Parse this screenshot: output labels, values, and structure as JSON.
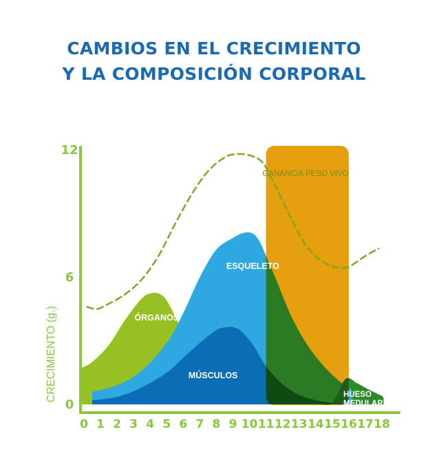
{
  "title_lines": [
    "CAMBIOS EN EL CRECIMIENTO",
    "Y LA COMPOSICIÓN CORPORAL"
  ],
  "colors": {
    "title": "#1a6ab3",
    "axis": "#8bc53f",
    "organos": "#97c023",
    "esqueleto": "#2fa7e0",
    "musculos": "#0b6db5",
    "hueso_medular": "#2f8a2a",
    "highlight_box": "#e6a00f",
    "ganancia_line": "#79a922"
  },
  "chart_data": {
    "type": "area",
    "ylabel": "CRECIMIENTO (g.)",
    "xlabel": "",
    "x_ticks": [
      "0",
      "1",
      "2",
      "3",
      "4",
      "5",
      "6",
      "7",
      "8",
      "9",
      "10",
      "11",
      "12",
      "13",
      "14",
      "15",
      "16",
      "17",
      "18"
    ],
    "y_ticks": [
      "0",
      "6",
      "12"
    ],
    "xlim": [
      0,
      18
    ],
    "ylim": [
      0,
      12
    ],
    "grid": false,
    "series": [
      {
        "name": "ÓRGANOS",
        "x": [
          -0.2,
          0.5,
          1.5,
          2.5,
          3.5,
          4.1,
          4.6,
          5.0,
          5.6,
          6.3,
          7.0,
          8.0,
          9.0,
          10.0,
          11.0,
          12.0,
          13.0
        ],
        "values": [
          1.7,
          2.0,
          2.8,
          4.0,
          5.0,
          5.25,
          5.2,
          4.9,
          4.0,
          2.9,
          2.0,
          1.25,
          0.8,
          0.5,
          0.3,
          0.15,
          0.05
        ]
      },
      {
        "name": "ESQUELETO",
        "x": [
          0.5,
          2.0,
          3.5,
          5.0,
          6.0,
          7.0,
          8.0,
          9.0,
          9.7,
          10.2,
          10.6,
          11.0,
          11.5,
          12.5,
          13.5,
          14.5,
          15.5,
          16.2
        ],
        "values": [
          0.6,
          0.9,
          1.6,
          2.9,
          4.3,
          6.0,
          7.3,
          7.85,
          8.1,
          8.05,
          7.7,
          7.0,
          6.1,
          4.2,
          2.8,
          1.8,
          1.05,
          0.7
        ]
      },
      {
        "name": "MÚSCULOS",
        "x": [
          0.5,
          2.0,
          3.5,
          5.0,
          6.0,
          7.0,
          8.0,
          8.7,
          9.2,
          9.7,
          10.3,
          11.0,
          12.0,
          13.0,
          14.0,
          15.0,
          16.0
        ],
        "values": [
          0.2,
          0.35,
          0.8,
          1.5,
          2.2,
          2.9,
          3.5,
          3.65,
          3.6,
          3.3,
          2.7,
          1.8,
          0.95,
          0.45,
          0.2,
          0.07,
          0.0
        ]
      },
      {
        "name": "HUESO MEDULAR",
        "x": [
          0.5,
          2.0,
          4.0,
          6.0,
          8.0,
          10.0,
          11.0,
          12.0,
          13.0,
          14.0,
          15.0,
          15.8,
          16.5,
          17.2,
          17.6,
          18.0,
          18.1
        ],
        "values": [
          0.6,
          0.55,
          0.42,
          0.28,
          0.15,
          0.07,
          0.03,
          0.03,
          0.04,
          0.05,
          0.08,
          1.2,
          1.0,
          0.7,
          0.55,
          0.4,
          0.3
        ]
      },
      {
        "name": "GANANCIA PESO VIVO",
        "line": true,
        "x": [
          0.2,
          0.8,
          1.5,
          2.5,
          3.5,
          4.5,
          5.5,
          6.5,
          7.5,
          8.5,
          9.2,
          10.0,
          10.8,
          11.5,
          12.5,
          13.5,
          14.5,
          15.3,
          16.0,
          17.0,
          17.8
        ],
        "values": [
          4.6,
          4.5,
          4.75,
          5.2,
          5.9,
          7.0,
          8.5,
          9.9,
          11.0,
          11.65,
          11.8,
          11.75,
          11.4,
          10.4,
          8.8,
          7.4,
          6.7,
          6.45,
          6.5,
          7.0,
          7.35
        ]
      }
    ],
    "highlight_range": [
      11,
      16
    ],
    "area_labels": {
      "organos": "ÓRGANOS",
      "esqueleto": "ESQUELETO",
      "musculos": "MÚSCULOS",
      "hueso_medular_1": "HUESO",
      "hueso_medular_2": "MEDULAR",
      "ganancia": "GANANCIA PESO VIVO"
    }
  }
}
